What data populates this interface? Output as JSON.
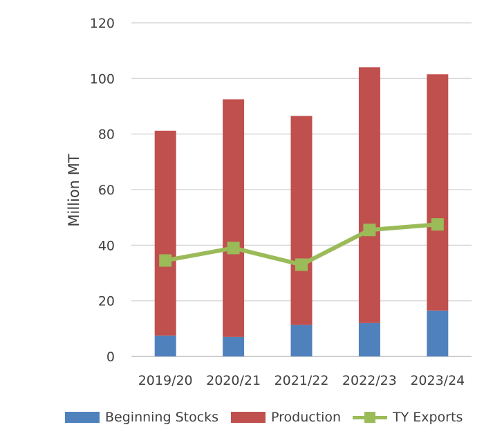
{
  "chart_data": {
    "type": "bar",
    "stacked": true,
    "categories": [
      "2019/20",
      "2020/21",
      "2021/22",
      "2022/23",
      "2023/24"
    ],
    "series": [
      {
        "name": "Beginning Stocks",
        "kind": "bar",
        "color": "#4f81bd",
        "values": [
          7.5,
          7.0,
          11.3,
          12.0,
          16.5
        ]
      },
      {
        "name": "Production",
        "kind": "bar",
        "color": "#c0504d",
        "values": [
          73.7,
          85.5,
          75.2,
          92.0,
          85.0
        ]
      },
      {
        "name": "TY Exports",
        "kind": "line",
        "color": "#9bbb59",
        "values": [
          34.5,
          39.0,
          33.0,
          45.5,
          47.5
        ]
      }
    ],
    "ylabel": "Million MT",
    "xlabel": "",
    "ylim": [
      0,
      120
    ],
    "yticks": [
      0,
      20,
      40,
      60,
      80,
      100,
      120
    ],
    "grid": true,
    "legend": "bottom"
  },
  "legend": {
    "beginning_stocks": "Beginning Stocks",
    "production": "Production",
    "ty_exports": "TY Exports"
  }
}
